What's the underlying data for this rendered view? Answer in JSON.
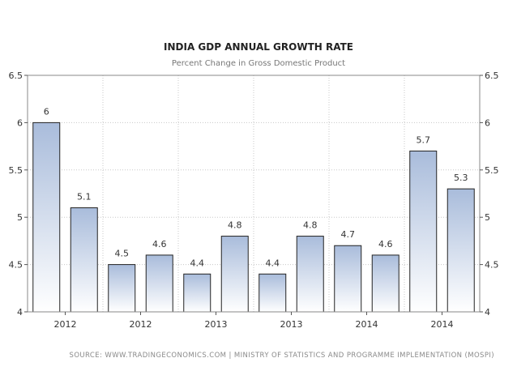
{
  "chart_data": {
    "type": "bar",
    "title": "INDIA GDP ANNUAL GROWTH RATE",
    "subtitle": "Percent Change in Gross Domestic Product",
    "categories": [
      "2012",
      "2012",
      "2012",
      "2012",
      "2013",
      "2013",
      "2013",
      "2013",
      "2014",
      "2014",
      "2014",
      "2014"
    ],
    "values": [
      6,
      5.1,
      4.5,
      4.6,
      4.4,
      4.8,
      4.4,
      4.8,
      4.7,
      4.6,
      5.7,
      5.3
    ],
    "x_tick_labels": [
      "2012",
      "2012",
      "2013",
      "2013",
      "2014",
      "2014"
    ],
    "y_ticks": [
      "4",
      "4.5",
      "5",
      "5.5",
      "6",
      "6.5"
    ],
    "ylim": [
      4,
      6.5
    ],
    "xlabel": "",
    "ylabel": "",
    "grid": true,
    "legend": "none",
    "source": "SOURCE: WWW.TRADINGECONOMICS.COM  |  MINISTRY OF STATISTICS AND PROGRAMME IMPLEMENTATION (MOSPI)",
    "colors": {
      "bar_top": "#a9bcdb",
      "bar_bottom": "#ffffff",
      "bar_stroke": "#222222",
      "grid": "#c8c8c8"
    }
  }
}
